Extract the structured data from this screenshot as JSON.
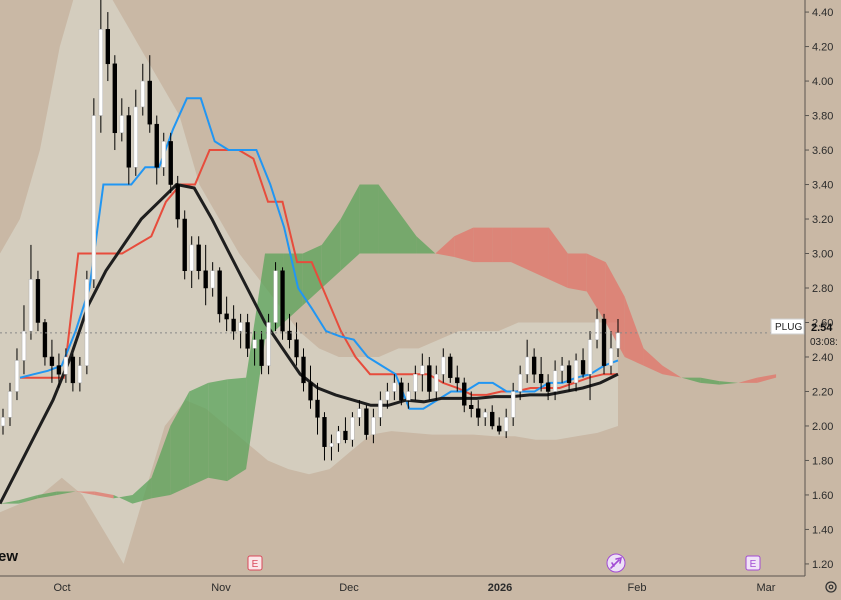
{
  "chart_data": {
    "type": "candlestick",
    "symbol": "PLUG",
    "last_price": "2.54",
    "countdown": "03:08:",
    "logo_fragment": "ew",
    "y_ticks": [
      "4.40",
      "4.20",
      "4.00",
      "3.80",
      "3.60",
      "3.40",
      "3.20",
      "3.00",
      "2.80",
      "2.60",
      "2.40",
      "2.20",
      "2.00",
      "1.80",
      "1.60",
      "1.40",
      "1.20"
    ],
    "ylim": [
      1.13,
      4.47
    ],
    "x_labels": [
      {
        "label": "Oct",
        "bold": false
      },
      {
        "label": "Nov",
        "bold": false
      },
      {
        "label": "Dec",
        "bold": false
      },
      {
        "label": "2026",
        "bold": true
      },
      {
        "label": "Feb",
        "bold": false
      },
      {
        "label": "Mar",
        "bold": false
      }
    ],
    "event_markers": [
      "E",
      "E",
      "E"
    ],
    "colors": {
      "background": "#c9b8a5",
      "bollinger_fill": "#d6d0c2",
      "cloud_bullish": "#5aa35a",
      "cloud_bearish": "#e2746a",
      "tenkan": "#2196f3",
      "kijun": "#e74c3c",
      "moving_average": "#1e1e1e",
      "candle_up": "#ffffff",
      "candle_down": "#000000",
      "event_marker": "#d9495a",
      "dividend_marker": "#a24bd4"
    },
    "candles": [
      [
        2.0,
        2.1,
        1.95,
        2.05
      ],
      [
        2.05,
        2.25,
        2.0,
        2.2
      ],
      [
        2.2,
        2.45,
        2.15,
        2.38
      ],
      [
        2.38,
        2.7,
        2.3,
        2.55
      ],
      [
        2.55,
        3.05,
        2.5,
        2.85
      ],
      [
        2.85,
        2.9,
        2.55,
        2.6
      ],
      [
        2.6,
        2.62,
        2.35,
        2.4
      ],
      [
        2.4,
        2.5,
        2.25,
        2.35
      ],
      [
        2.35,
        2.42,
        2.22,
        2.3
      ],
      [
        2.3,
        2.45,
        2.25,
        2.4
      ],
      [
        2.4,
        2.42,
        2.2,
        2.25
      ],
      [
        2.25,
        2.4,
        2.2,
        2.35
      ],
      [
        2.35,
        2.9,
        2.3,
        2.85
      ],
      [
        2.85,
        3.9,
        2.8,
        3.8
      ],
      [
        3.8,
        4.5,
        3.7,
        4.3
      ],
      [
        4.3,
        4.4,
        4.0,
        4.1
      ],
      [
        4.1,
        4.15,
        3.6,
        3.7
      ],
      [
        3.7,
        3.9,
        3.65,
        3.8
      ],
      [
        3.8,
        3.85,
        3.4,
        3.5
      ],
      [
        3.5,
        3.95,
        3.45,
        3.85
      ],
      [
        3.85,
        4.1,
        3.8,
        4.0
      ],
      [
        4.0,
        4.15,
        3.7,
        3.75
      ],
      [
        3.75,
        3.8,
        3.4,
        3.5
      ],
      [
        3.5,
        3.7,
        3.45,
        3.65
      ],
      [
        3.65,
        3.7,
        3.35,
        3.4
      ],
      [
        3.4,
        3.45,
        3.15,
        3.2
      ],
      [
        3.2,
        3.25,
        2.85,
        2.9
      ],
      [
        2.9,
        3.1,
        2.8,
        3.05
      ],
      [
        3.05,
        3.1,
        2.85,
        2.9
      ],
      [
        2.9,
        3.05,
        2.7,
        2.8
      ],
      [
        2.8,
        2.95,
        2.75,
        2.9
      ],
      [
        2.9,
        2.92,
        2.6,
        2.65
      ],
      [
        2.65,
        2.75,
        2.55,
        2.62
      ],
      [
        2.62,
        2.7,
        2.5,
        2.55
      ],
      [
        2.55,
        2.65,
        2.45,
        2.6
      ],
      [
        2.6,
        2.65,
        2.4,
        2.45
      ],
      [
        2.45,
        2.55,
        2.35,
        2.5
      ],
      [
        2.5,
        2.55,
        2.3,
        2.35
      ],
      [
        2.35,
        2.65,
        2.3,
        2.6
      ],
      [
        2.6,
        2.95,
        2.55,
        2.9
      ],
      [
        2.9,
        2.92,
        2.5,
        2.55
      ],
      [
        2.55,
        2.65,
        2.45,
        2.5
      ],
      [
        2.5,
        2.6,
        2.35,
        2.4
      ],
      [
        2.4,
        2.45,
        2.2,
        2.25
      ],
      [
        2.25,
        2.35,
        2.1,
        2.15
      ],
      [
        2.15,
        2.25,
        1.95,
        2.05
      ],
      [
        2.05,
        2.08,
        1.8,
        1.88
      ],
      [
        1.88,
        1.95,
        1.8,
        1.9
      ],
      [
        1.9,
        2.0,
        1.85,
        1.97
      ],
      [
        1.97,
        2.05,
        1.9,
        1.92
      ],
      [
        1.92,
        2.08,
        1.88,
        2.05
      ],
      [
        2.05,
        2.15,
        2.0,
        2.1
      ],
      [
        2.1,
        2.12,
        1.92,
        1.95
      ],
      [
        1.95,
        2.1,
        1.9,
        2.05
      ],
      [
        2.05,
        2.2,
        2.0,
        2.15
      ],
      [
        2.15,
        2.25,
        2.1,
        2.2
      ],
      [
        2.2,
        2.3,
        2.15,
        2.25
      ],
      [
        2.25,
        2.28,
        2.12,
        2.15
      ],
      [
        2.15,
        2.25,
        2.1,
        2.2
      ],
      [
        2.2,
        2.35,
        2.15,
        2.3
      ],
      [
        2.3,
        2.42,
        2.2,
        2.35
      ],
      [
        2.35,
        2.4,
        2.15,
        2.2
      ],
      [
        2.2,
        2.35,
        2.15,
        2.3
      ],
      [
        2.3,
        2.45,
        2.25,
        2.4
      ],
      [
        2.4,
        2.42,
        2.25,
        2.28
      ],
      [
        2.28,
        2.35,
        2.2,
        2.25
      ],
      [
        2.25,
        2.28,
        2.08,
        2.12
      ],
      [
        2.12,
        2.2,
        2.05,
        2.1
      ],
      [
        2.1,
        2.15,
        2.0,
        2.05
      ],
      [
        2.05,
        2.1,
        2.0,
        2.08
      ],
      [
        2.08,
        2.12,
        1.98,
        2.0
      ],
      [
        2.0,
        2.05,
        1.95,
        1.97
      ],
      [
        1.97,
        2.1,
        1.93,
        2.05
      ],
      [
        2.05,
        2.25,
        2.0,
        2.2
      ],
      [
        2.2,
        2.35,
        2.15,
        2.3
      ],
      [
        2.3,
        2.5,
        2.25,
        2.4
      ],
      [
        2.4,
        2.45,
        2.25,
        2.3
      ],
      [
        2.3,
        2.4,
        2.2,
        2.25
      ],
      [
        2.25,
        2.3,
        2.15,
        2.2
      ],
      [
        2.2,
        2.38,
        2.15,
        2.32
      ],
      [
        2.32,
        2.4,
        2.25,
        2.35
      ],
      [
        2.35,
        2.38,
        2.2,
        2.25
      ],
      [
        2.25,
        2.42,
        2.2,
        2.38
      ],
      [
        2.38,
        2.45,
        2.28,
        2.3
      ],
      [
        2.3,
        2.55,
        2.15,
        2.5
      ],
      [
        2.5,
        2.68,
        2.45,
        2.62
      ],
      [
        2.62,
        2.65,
        2.3,
        2.35
      ],
      [
        2.35,
        2.55,
        2.3,
        2.45
      ],
      [
        2.45,
        2.62,
        2.4,
        2.54
      ]
    ],
    "tenkan": [
      2.28,
      2.3,
      2.32,
      2.35,
      2.55,
      2.8,
      3.4,
      3.4,
      3.4,
      3.5,
      3.5,
      3.72,
      3.9,
      3.9,
      3.65,
      3.6,
      3.6,
      3.6,
      3.4,
      3.15,
      2.8,
      2.68,
      2.55,
      2.52,
      2.5,
      2.4,
      2.35,
      2.3,
      2.1,
      2.1,
      2.15,
      2.2,
      2.2,
      2.25,
      2.25,
      2.2,
      2.2,
      2.2,
      2.25,
      2.25,
      2.28,
      2.3,
      2.35,
      2.38
    ],
    "kijun": [
      2.28,
      2.28,
      2.28,
      2.28,
      3.0,
      3.0,
      3.0,
      3.0,
      3.05,
      3.1,
      3.3,
      3.4,
      3.4,
      3.6,
      3.6,
      3.6,
      3.55,
      3.3,
      3.3,
      2.95,
      2.95,
      2.75,
      2.55,
      2.4,
      2.3,
      2.3,
      2.3,
      2.3,
      2.3,
      2.25,
      2.22,
      2.18,
      2.18,
      2.2,
      2.2,
      2.22,
      2.22,
      2.22,
      2.25,
      2.28,
      2.3,
      2.3
    ],
    "moving_average": [
      1.55,
      1.75,
      1.95,
      2.15,
      2.4,
      2.7,
      2.9,
      3.05,
      3.2,
      3.3,
      3.4,
      3.38,
      3.2,
      3.0,
      2.8,
      2.6,
      2.45,
      2.3,
      2.22,
      2.18,
      2.15,
      2.12,
      2.12,
      2.15,
      2.14,
      2.16,
      2.16,
      2.16,
      2.17,
      2.17,
      2.18,
      2.18,
      2.2,
      2.22,
      2.25,
      2.3
    ],
    "cloud_span_a": [
      1.55,
      1.57,
      1.6,
      1.62,
      1.62,
      1.6,
      1.58,
      1.6,
      1.7,
      2.0,
      2.2,
      2.25,
      2.27,
      2.28,
      3.0,
      3.0,
      3.0,
      3.05,
      3.2,
      3.4,
      3.4,
      3.25,
      3.1,
      3.0,
      2.98,
      2.95,
      2.95,
      2.95,
      2.9,
      2.85,
      2.8,
      2.78,
      2.6,
      2.4,
      2.35,
      2.3,
      2.28,
      2.28,
      2.26,
      2.25,
      2.25,
      2.28,
      2.3
    ],
    "cloud_span_b": [
      1.55,
      1.55,
      1.58,
      1.6,
      1.62,
      1.62,
      1.6,
      1.55,
      1.58,
      1.6,
      1.65,
      1.7,
      1.68,
      1.75,
      2.5,
      2.6,
      2.7,
      2.8,
      2.9,
      3.0,
      3.0,
      3.0,
      3.0,
      3.0,
      3.1,
      3.15,
      3.15,
      3.15,
      3.15,
      3.15,
      3.0,
      3.0,
      2.95,
      2.75,
      2.45,
      2.35,
      2.28,
      2.25,
      2.24,
      2.25,
      2.28,
      2.3
    ],
    "band_upper": [
      3.0,
      3.2,
      3.6,
      4.2,
      4.6,
      4.6,
      4.4,
      4.2,
      4.0,
      3.8,
      3.4,
      3.2,
      3.0,
      2.85,
      2.7,
      2.55,
      2.45,
      2.4,
      2.4,
      2.4,
      2.45,
      2.45,
      2.5,
      2.55,
      2.55,
      2.55,
      2.6,
      2.6,
      2.6,
      2.6,
      2.6,
      2.6
    ],
    "band_lower": [
      1.5,
      1.55,
      1.6,
      1.7,
      1.6,
      1.4,
      1.2,
      1.6,
      2.0,
      2.15,
      2.1,
      2.0,
      1.9,
      1.8,
      1.75,
      1.72,
      1.75,
      1.85,
      1.95,
      1.97,
      1.96,
      1.95,
      1.95,
      1.95,
      1.94,
      1.94,
      1.92,
      1.92,
      1.94,
      1.96,
      2.0
    ]
  }
}
